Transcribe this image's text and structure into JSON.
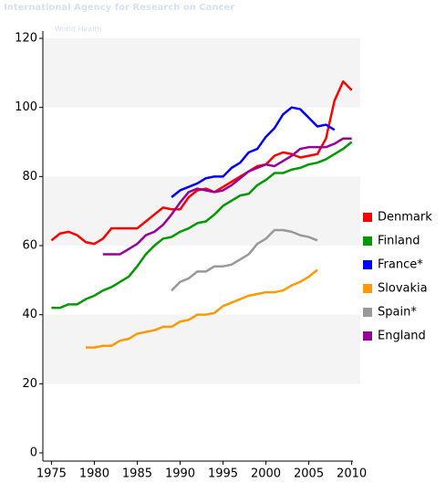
{
  "header": {
    "agency": "International Agency for Research on Cancer",
    "organization": "World Health"
  },
  "chart_data": {
    "type": "line",
    "x": [
      1975,
      1976,
      1977,
      1978,
      1979,
      1980,
      1981,
      1982,
      1983,
      1984,
      1985,
      1986,
      1987,
      1988,
      1989,
      1990,
      1991,
      1992,
      1993,
      1994,
      1995,
      1996,
      1997,
      1998,
      1999,
      2000,
      2001,
      2002,
      2003,
      2004,
      2005,
      2006,
      2007,
      2008,
      2009,
      2010
    ],
    "series": [
      {
        "name": "Denmark",
        "color": "#ff0000",
        "values": [
          61.5,
          63.5,
          64,
          63,
          61,
          60.5,
          62,
          65,
          65,
          65,
          65,
          67,
          69,
          71,
          70.5,
          70.5,
          74,
          76,
          76.5,
          75.5,
          77,
          78.5,
          80,
          81.5,
          83,
          83.5,
          86,
          87,
          86.5,
          85.5,
          86,
          86.5,
          91,
          102,
          107.5,
          105
        ]
      },
      {
        "name": "Finland",
        "color": "#009900",
        "values": [
          42,
          42,
          43,
          43,
          44.5,
          45.5,
          47,
          48,
          49.5,
          51,
          54,
          57.5,
          60,
          62,
          62.5,
          64,
          65,
          66.5,
          67,
          69,
          71.5,
          73,
          74.5,
          75,
          77.5,
          79,
          81,
          81,
          82,
          82.5,
          83.5,
          84,
          85,
          86.5,
          88,
          90
        ]
      },
      {
        "name": "France*",
        "color": "#0000ff",
        "values": [
          null,
          null,
          null,
          null,
          null,
          null,
          null,
          null,
          null,
          null,
          null,
          null,
          null,
          null,
          74,
          76,
          77,
          78,
          79.5,
          80,
          80,
          82.5,
          84,
          87,
          88,
          91.5,
          94,
          98,
          100,
          99.5,
          97,
          94.5,
          95,
          93.5,
          null,
          null
        ]
      },
      {
        "name": "Slovakia",
        "color": "#ff9900",
        "values": [
          null,
          null,
          null,
          null,
          30.5,
          30.5,
          31,
          31,
          32.5,
          33,
          34.5,
          35,
          35.5,
          36.5,
          36.5,
          38,
          38.5,
          40,
          40,
          40.5,
          42.5,
          43.5,
          44.5,
          45.5,
          46,
          46.5,
          46.5,
          47,
          48.5,
          49.5,
          51,
          53,
          null,
          null,
          null,
          null
        ]
      },
      {
        "name": "Spain*",
        "color": "#999999",
        "values": [
          null,
          null,
          null,
          null,
          null,
          null,
          null,
          null,
          null,
          null,
          null,
          null,
          null,
          null,
          47,
          49.5,
          50.5,
          52.5,
          52.5,
          54,
          54,
          54.5,
          56,
          57.5,
          60.5,
          62,
          64.5,
          64.5,
          64,
          63,
          62.5,
          61.5,
          null,
          null,
          null,
          null
        ]
      },
      {
        "name": "England",
        "color": "#990099",
        "values": [
          null,
          null,
          null,
          null,
          null,
          null,
          57.5,
          57.5,
          57.5,
          59,
          60.5,
          63,
          64,
          66,
          69,
          72.5,
          75.5,
          76.5,
          76,
          75.5,
          76,
          77.5,
          79.5,
          81.5,
          82.5,
          83.5,
          83,
          84.5,
          86,
          88,
          88.5,
          88.5,
          88.5,
          89.5,
          91,
          91
        ]
      }
    ],
    "xlim": [
      1974,
      2011
    ],
    "xticks": [
      1975,
      1980,
      1985,
      1990,
      1995,
      2000,
      2005,
      2010
    ],
    "ylim": [
      0,
      120
    ],
    "yticks": [
      0,
      20,
      40,
      60,
      80,
      100,
      120
    ],
    "legend": "right"
  }
}
